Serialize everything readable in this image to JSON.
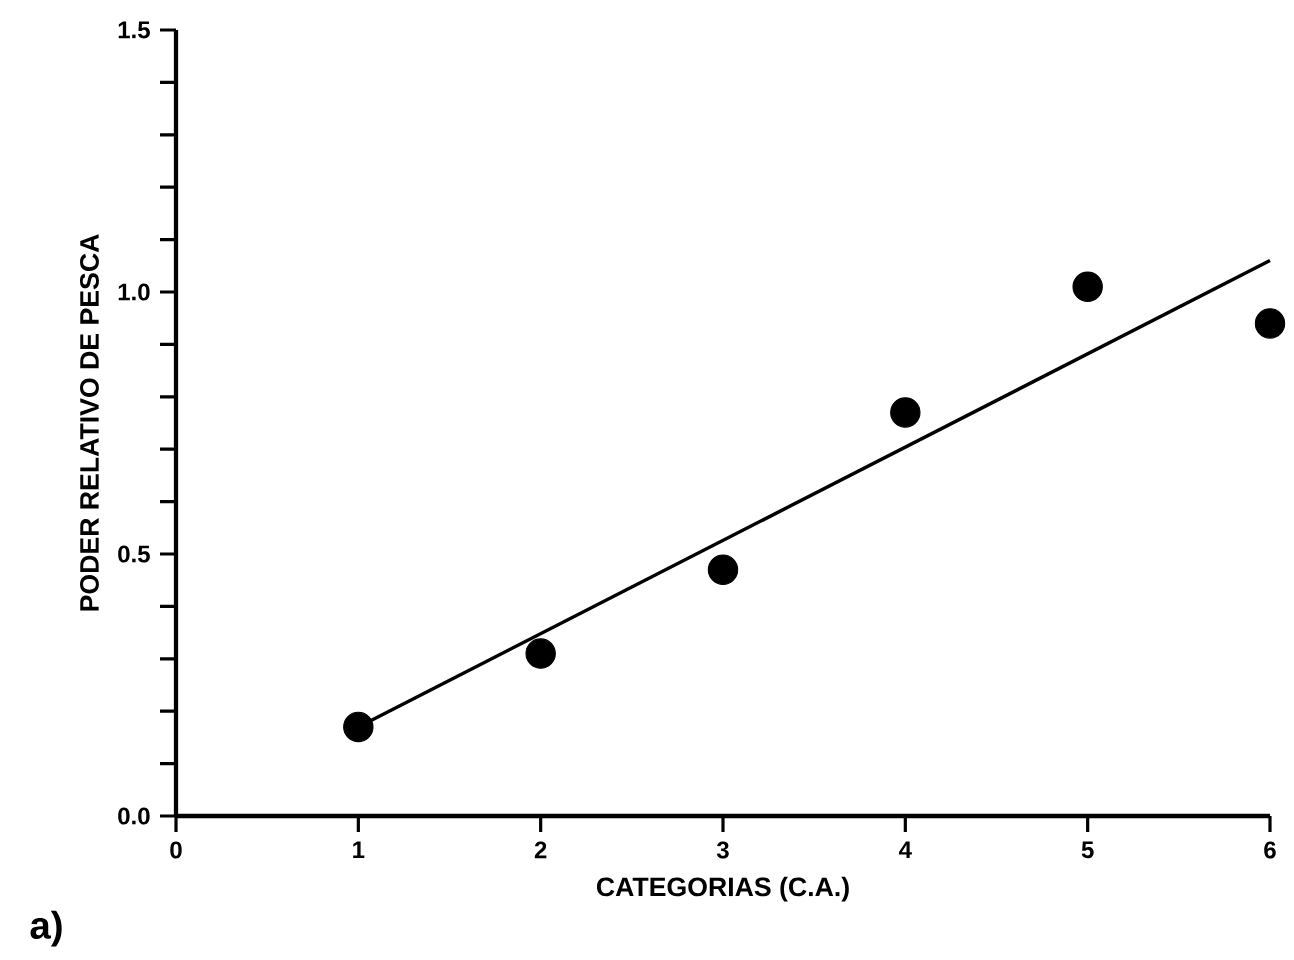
{
  "chart_data": {
    "type": "scatter",
    "xlabel": "CATEGORIAS (C.A.)",
    "ylabel": "PODER RELATIVO DE PESCA",
    "annotations": [
      "a)"
    ],
    "x": [
      1,
      2,
      3,
      4,
      5,
      6
    ],
    "xlim": [
      0,
      6
    ],
    "ylim": [
      0,
      1.5
    ],
    "xticks": [
      0,
      1,
      2,
      3,
      4,
      5,
      6
    ],
    "yticks": [
      {
        "value": 0,
        "label": "0.0"
      },
      {
        "value": 0.5,
        "label": "0.5"
      },
      {
        "value": 1,
        "label": "1.0"
      },
      {
        "value": 1.5,
        "label": "1.5"
      }
    ],
    "marker": "circle",
    "grid": false,
    "series": [
      {
        "color": "#000000",
        "values": [
          0.17,
          0.31,
          0.47,
          0.77,
          1.01,
          0.94
        ]
      },
      {
        "type": "line",
        "x": [
          1,
          6
        ],
        "values": [
          0.17,
          1.06
        ],
        "color": "#000000",
        "marker": "none"
      }
    ]
  }
}
